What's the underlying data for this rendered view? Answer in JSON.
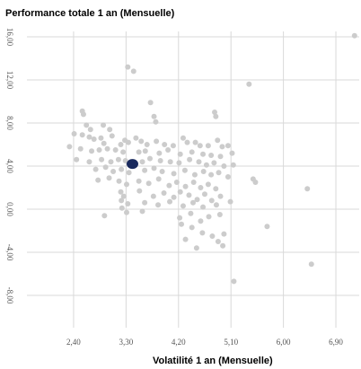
{
  "chart_data": {
    "type": "scatter",
    "title": "",
    "ylabel": "Performance totale 1 an (Mensuelle)",
    "xlabel": "Volatilité 1 an (Mensuelle)",
    "x_ticks": [
      "2,40",
      "3,30",
      "4,20",
      "5,10",
      "6,00",
      "6,90"
    ],
    "x_tick_values": [
      2.4,
      3.3,
      4.2,
      5.1,
      6.0,
      6.9
    ],
    "y_ticks": [
      "16,00",
      "12,00",
      "8,00",
      "4,00",
      "0,00",
      "-4,00",
      "-8,00"
    ],
    "y_tick_values": [
      16,
      12,
      8,
      4,
      0,
      -4,
      -8
    ],
    "xlim": [
      1.6,
      7.3
    ],
    "ylim": [
      -11,
      16.5
    ],
    "grid": true,
    "highlight": {
      "x": 3.41,
      "y": 4.2,
      "color": "#1a2a5e"
    },
    "points_color": "#cccccc",
    "points": [
      [
        3.33,
        13.2
      ],
      [
        3.43,
        12.8
      ],
      [
        3.72,
        9.9
      ],
      [
        7.22,
        16.1
      ],
      [
        5.41,
        11.6
      ],
      [
        2.55,
        9.1
      ],
      [
        2.57,
        8.8
      ],
      [
        4.82,
        9.0
      ],
      [
        4.84,
        8.6
      ],
      [
        3.78,
        8.6
      ],
      [
        3.81,
        8.1
      ],
      [
        2.62,
        7.8
      ],
      [
        2.91,
        7.8
      ],
      [
        2.69,
        7.4
      ],
      [
        3.02,
        7.4
      ],
      [
        2.41,
        7.0
      ],
      [
        2.55,
        6.9
      ],
      [
        2.67,
        6.7
      ],
      [
        2.75,
        6.5
      ],
      [
        2.87,
        6.6
      ],
      [
        2.92,
        6.1
      ],
      [
        3.06,
        6.8
      ],
      [
        3.21,
        6.0
      ],
      [
        3.28,
        6.4
      ],
      [
        3.34,
        6.2
      ],
      [
        3.47,
        6.6
      ],
      [
        3.56,
        6.3
      ],
      [
        3.66,
        6.0
      ],
      [
        3.82,
        6.3
      ],
      [
        3.96,
        6.0
      ],
      [
        4.11,
        5.9
      ],
      [
        4.28,
        6.6
      ],
      [
        4.35,
        6.2
      ],
      [
        4.49,
        6.2
      ],
      [
        4.57,
        5.9
      ],
      [
        4.71,
        5.9
      ],
      [
        4.87,
        6.4
      ],
      [
        4.95,
        5.8
      ],
      [
        5.05,
        5.9
      ],
      [
        2.33,
        5.8
      ],
      [
        2.52,
        5.6
      ],
      [
        2.71,
        5.4
      ],
      [
        2.84,
        5.5
      ],
      [
        2.98,
        5.6
      ],
      [
        3.12,
        5.5
      ],
      [
        3.25,
        5.3
      ],
      [
        3.52,
        5.3
      ],
      [
        3.63,
        5.4
      ],
      [
        3.87,
        5.2
      ],
      [
        4.02,
        5.5
      ],
      [
        4.23,
        5.1
      ],
      [
        4.43,
        5.3
      ],
      [
        4.62,
        5.1
      ],
      [
        4.76,
        5.0
      ],
      [
        4.92,
        4.9
      ],
      [
        5.12,
        5.2
      ],
      [
        2.45,
        4.6
      ],
      [
        2.67,
        4.4
      ],
      [
        2.88,
        4.6
      ],
      [
        3.04,
        4.4
      ],
      [
        3.17,
        4.6
      ],
      [
        3.29,
        4.5
      ],
      [
        3.58,
        4.4
      ],
      [
        3.71,
        4.7
      ],
      [
        3.89,
        4.5
      ],
      [
        4.06,
        4.4
      ],
      [
        4.21,
        4.3
      ],
      [
        4.39,
        4.6
      ],
      [
        4.55,
        4.4
      ],
      [
        4.68,
        4.1
      ],
      [
        4.81,
        4.3
      ],
      [
        4.98,
        4.0
      ],
      [
        5.14,
        4.1
      ],
      [
        2.78,
        3.7
      ],
      [
        2.95,
        3.9
      ],
      [
        3.08,
        3.5
      ],
      [
        3.22,
        3.7
      ],
      [
        3.35,
        3.4
      ],
      [
        3.62,
        3.6
      ],
      [
        3.78,
        3.8
      ],
      [
        3.92,
        3.5
      ],
      [
        4.12,
        3.3
      ],
      [
        4.31,
        3.6
      ],
      [
        4.48,
        3.2
      ],
      [
        4.63,
        3.5
      ],
      [
        4.76,
        3.2
      ],
      [
        4.89,
        3.4
      ],
      [
        5.05,
        3.0
      ],
      [
        2.82,
        2.7
      ],
      [
        3.01,
        2.9
      ],
      [
        3.18,
        2.6
      ],
      [
        3.31,
        2.3
      ],
      [
        3.52,
        2.6
      ],
      [
        3.69,
        2.4
      ],
      [
        3.86,
        2.8
      ],
      [
        4.04,
        2.2
      ],
      [
        4.17,
        2.5
      ],
      [
        4.32,
        2.1
      ],
      [
        4.46,
        2.5
      ],
      [
        4.58,
        2.0
      ],
      [
        4.71,
        2.3
      ],
      [
        4.84,
        1.9
      ],
      [
        5.48,
        2.8
      ],
      [
        5.52,
        2.5
      ],
      [
        6.41,
        1.9
      ],
      [
        3.21,
        1.6
      ],
      [
        3.26,
        1.2
      ],
      [
        3.53,
        1.7
      ],
      [
        3.77,
        1.2
      ],
      [
        3.95,
        1.5
      ],
      [
        4.12,
        1.1
      ],
      [
        4.23,
        1.6
      ],
      [
        4.38,
        1.3
      ],
      [
        4.52,
        0.9
      ],
      [
        4.65,
        1.4
      ],
      [
        4.77,
        0.8
      ],
      [
        4.92,
        1.2
      ],
      [
        3.22,
        0.8
      ],
      [
        3.33,
        0.5
      ],
      [
        3.62,
        0.6
      ],
      [
        3.85,
        0.4
      ],
      [
        4.05,
        0.7
      ],
      [
        4.28,
        0.3
      ],
      [
        4.45,
        0.6
      ],
      [
        4.62,
        0.2
      ],
      [
        4.85,
        0.4
      ],
      [
        5.09,
        0.7
      ],
      [
        3.23,
        0.1
      ],
      [
        3.31,
        -0.3
      ],
      [
        2.93,
        -0.6
      ],
      [
        3.58,
        -0.2
      ],
      [
        4.22,
        -0.8
      ],
      [
        4.41,
        -0.4
      ],
      [
        4.58,
        -1.1
      ],
      [
        4.72,
        -0.7
      ],
      [
        4.91,
        -0.5
      ],
      [
        5.72,
        -1.6
      ],
      [
        4.25,
        -1.4
      ],
      [
        4.43,
        -1.7
      ],
      [
        4.61,
        -2.2
      ],
      [
        4.78,
        -2.5
      ],
      [
        4.98,
        -2.3
      ],
      [
        4.32,
        -2.8
      ],
      [
        4.88,
        -3.0
      ],
      [
        4.96,
        -3.4
      ],
      [
        4.51,
        -3.6
      ],
      [
        6.48,
        -5.1
      ],
      [
        5.15,
        -6.7
      ]
    ]
  }
}
